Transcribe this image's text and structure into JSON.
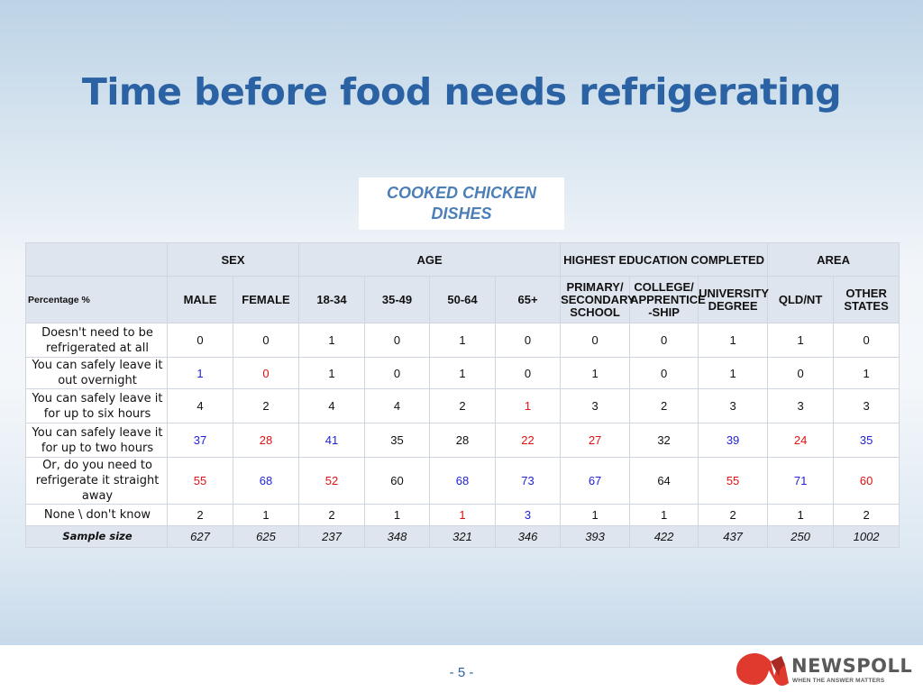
{
  "title": "Time before food needs refrigerating",
  "subtitle": "COOKED CHICKEN DISHES",
  "table": {
    "groups": [
      "SEX",
      "AGE",
      "HIGHEST EDUCATION COMPLETED",
      "AREA"
    ],
    "corner_label": "Percentage %",
    "columns": [
      "MALE",
      "FEMALE",
      "18-34",
      "35-49",
      "50-64",
      "65+",
      "PRIMARY/ SECONDARY SCHOOL",
      "COLLEGE/ APPRENTICE -SHIP",
      "UNIVERSITY DEGREE",
      "QLD/NT",
      "OTHER STATES"
    ],
    "rows": [
      {
        "label": "Doesn't need to be refrigerated at all",
        "values": [
          "0",
          "0",
          "1",
          "0",
          "1",
          "0",
          "0",
          "0",
          "1",
          "1",
          "0"
        ]
      },
      {
        "label": "You can safely leave it out overnight",
        "values": [
          "1",
          "0",
          "1",
          "0",
          "1",
          "0",
          "1",
          "0",
          "1",
          "0",
          "1"
        ]
      },
      {
        "label": "You can safely leave it for up to six hours",
        "values": [
          "4",
          "2",
          "4",
          "4",
          "2",
          "1",
          "3",
          "2",
          "3",
          "3",
          "3"
        ]
      },
      {
        "label": "You can safely leave it for up to two hours",
        "values": [
          "37",
          "28",
          "41",
          "35",
          "28",
          "22",
          "27",
          "32",
          "39",
          "24",
          "35"
        ]
      },
      {
        "label": "Or, do you need to refrigerate it straight away",
        "values": [
          "55",
          "68",
          "52",
          "60",
          "68",
          "73",
          "67",
          "64",
          "55",
          "71",
          "60"
        ]
      },
      {
        "label": "None \\ don't know",
        "values": [
          "2",
          "1",
          "2",
          "1",
          "1",
          "3",
          "1",
          "1",
          "2",
          "1",
          "2"
        ]
      }
    ],
    "sample": {
      "label": "Sample size",
      "values": [
        "627",
        "625",
        "237",
        "348",
        "321",
        "346",
        "393",
        "422",
        "437",
        "250",
        "1002"
      ]
    },
    "colors": {
      "significantly_higher": "#1f1fd6",
      "significantly_lower": "#e01010"
    }
  },
  "footer": {
    "page_number": "- 5 -",
    "logo_name": "NEWSPOLL",
    "logo_tagline": "WHEN THE ANSWER MATTERS",
    "logo_icon": "newspoll-logo-icon"
  }
}
